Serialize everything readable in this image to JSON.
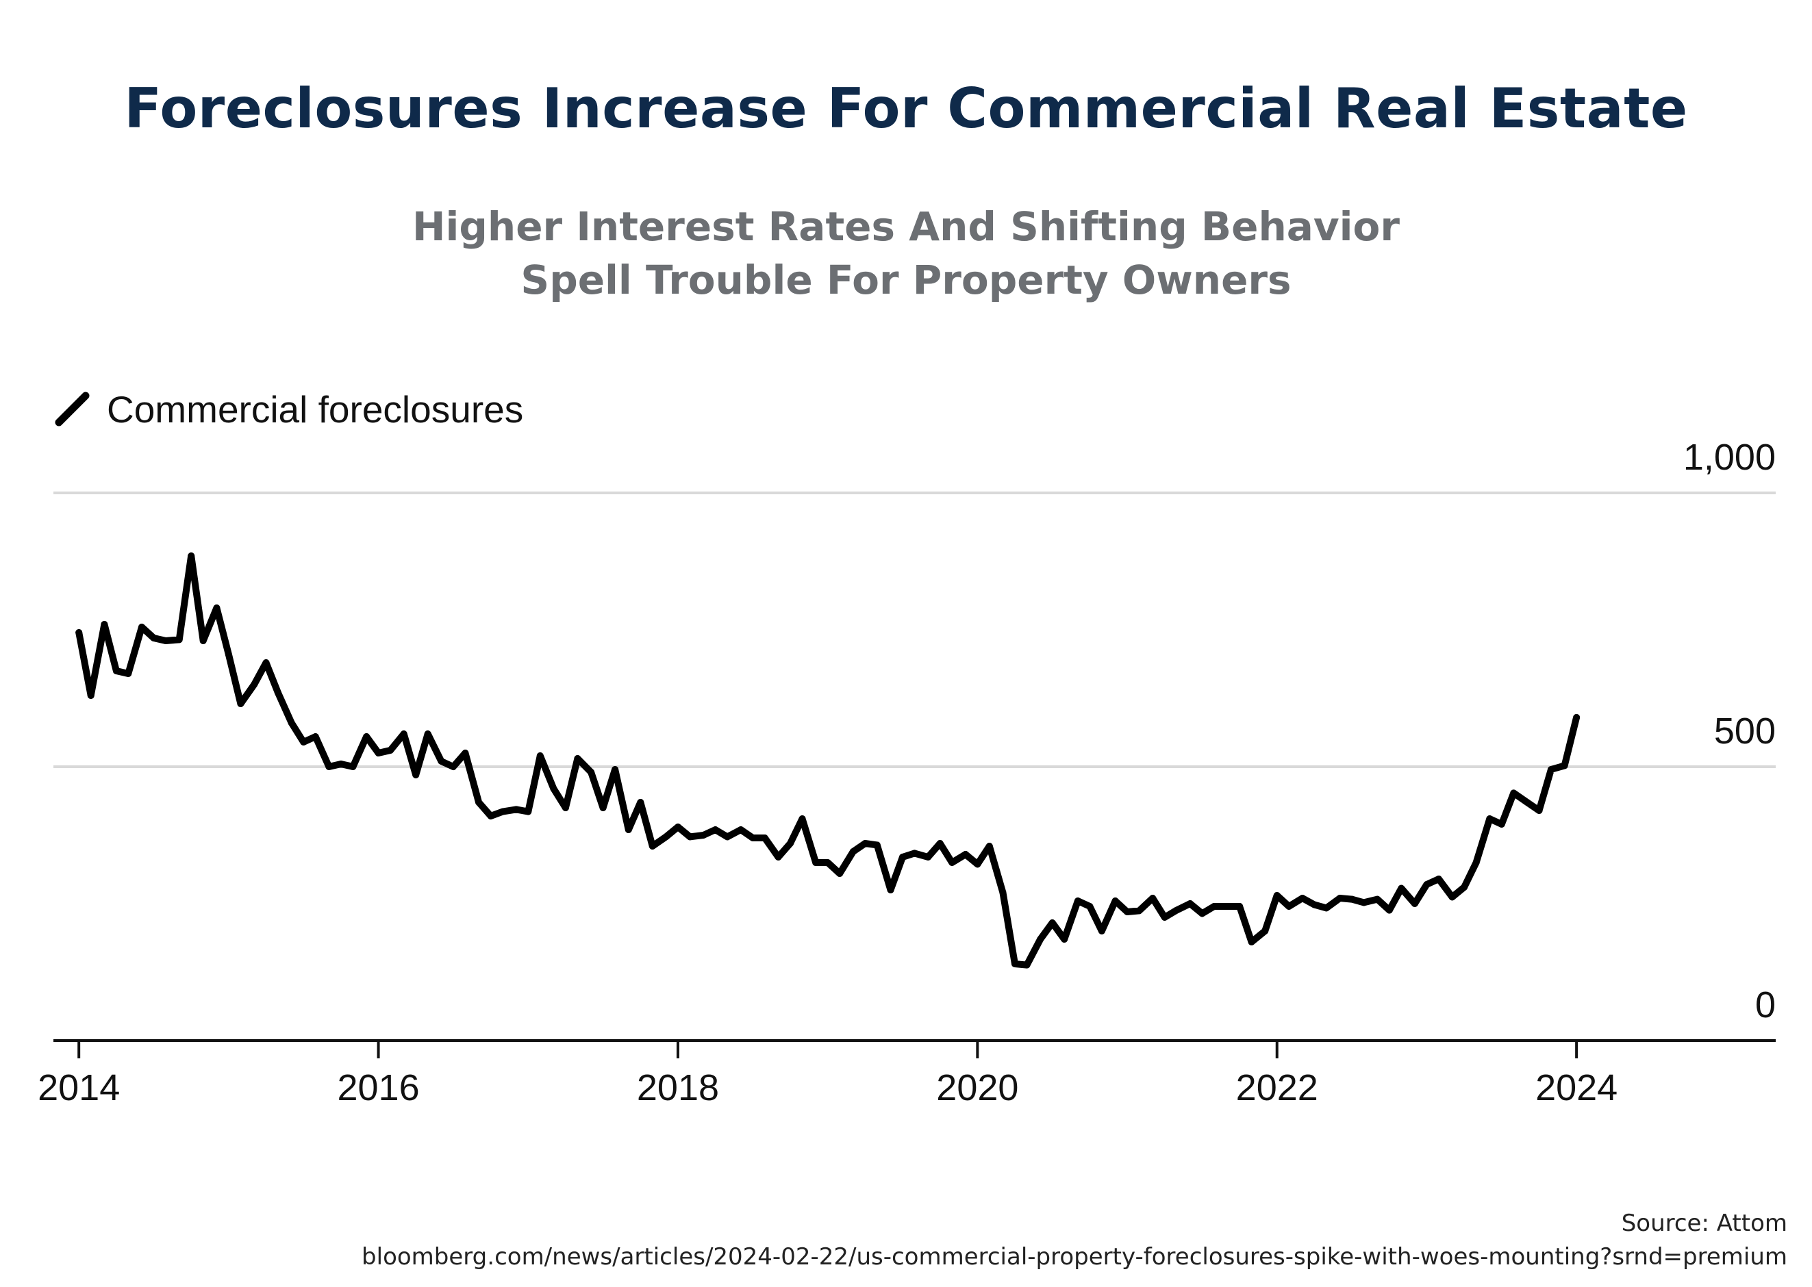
{
  "title": "Foreclosures Increase For Commercial Real Estate",
  "subtitle": [
    "Higher Interest Rates And Shifting Behavior",
    "Spell Trouble For Property Owners"
  ],
  "source": {
    "attribution": "Source: Attom",
    "url": "bloomberg.com/news/articles/2024-02-22/us-commercial-property-foreclosures-spike-with-woes-mounting?srnd=premium"
  },
  "colors": {
    "title": "#0f2a4a",
    "subtitle": "#6c6f73",
    "line": "#000000",
    "grid": "#d9d9d9",
    "axis": "#111111"
  },
  "chart_data": {
    "type": "line",
    "legend": {
      "label": "Commercial foreclosures",
      "placement": "top-left"
    },
    "xlim": [
      2013.83,
      2025.33
    ],
    "ylim": [
      0,
      1000
    ],
    "x_ticks": [
      2014,
      2016,
      2018,
      2020,
      2022,
      2024
    ],
    "x_tick_labels": [
      "2014",
      "2016",
      "2018",
      "2020",
      "2022",
      "2024"
    ],
    "y_ticks": [
      0,
      500,
      1000
    ],
    "y_tick_labels": [
      "0",
      "500",
      "1,000"
    ],
    "grid": {
      "horizontal": true,
      "vertical": false
    },
    "series": [
      {
        "name": "Commercial foreclosures",
        "x": [
          2014.0,
          2014.08,
          2014.17,
          2014.25,
          2014.33,
          2014.42,
          2014.5,
          2014.58,
          2014.67,
          2014.75,
          2014.83,
          2014.92,
          2015.0,
          2015.08,
          2015.17,
          2015.25,
          2015.33,
          2015.42,
          2015.5,
          2015.58,
          2015.67,
          2015.75,
          2015.83,
          2015.92,
          2016.0,
          2016.08,
          2016.17,
          2016.25,
          2016.33,
          2016.42,
          2016.5,
          2016.58,
          2016.67,
          2016.75,
          2016.83,
          2016.92,
          2017.0,
          2017.08,
          2017.17,
          2017.25,
          2017.33,
          2017.42,
          2017.5,
          2017.58,
          2017.67,
          2017.75,
          2017.83,
          2017.92,
          2018.0,
          2018.08,
          2018.17,
          2018.25,
          2018.33,
          2018.42,
          2018.5,
          2018.58,
          2018.67,
          2018.75,
          2018.83,
          2018.92,
          2019.0,
          2019.08,
          2019.17,
          2019.25,
          2019.33,
          2019.42,
          2019.5,
          2019.58,
          2019.67,
          2019.75,
          2019.83,
          2019.92,
          2020.0,
          2020.08,
          2020.17,
          2020.25,
          2020.33,
          2020.42,
          2020.5,
          2020.58,
          2020.67,
          2020.75,
          2020.83,
          2020.92,
          2021.0,
          2021.08,
          2021.17,
          2021.25,
          2021.33,
          2021.42,
          2021.5,
          2021.58,
          2021.67,
          2021.75,
          2021.83,
          2021.92,
          2022.0,
          2022.08,
          2022.17,
          2022.25,
          2022.33,
          2022.42,
          2022.5,
          2022.58,
          2022.67,
          2022.75,
          2022.83,
          2022.92,
          2023.0,
          2023.08,
          2023.17,
          2023.25,
          2023.33,
          2023.42,
          2023.5,
          2023.58,
          2023.67,
          2023.75,
          2023.83,
          2023.92,
          2024.0
        ],
        "y": [
          745,
          630,
          760,
          675,
          670,
          755,
          735,
          730,
          732,
          885,
          730,
          790,
          705,
          615,
          650,
          690,
          635,
          580,
          545,
          555,
          500,
          505,
          500,
          555,
          525,
          530,
          560,
          485,
          560,
          510,
          500,
          525,
          435,
          410,
          418,
          422,
          418,
          520,
          460,
          425,
          515,
          490,
          425,
          495,
          385,
          435,
          355,
          372,
          390,
          372,
          375,
          385,
          372,
          385,
          370,
          370,
          335,
          360,
          405,
          325,
          325,
          305,
          345,
          360,
          357,
          275,
          335,
          342,
          335,
          360,
          325,
          340,
          322,
          355,
          270,
          140,
          138,
          185,
          215,
          185,
          255,
          245,
          200,
          255,
          235,
          237,
          260,
          225,
          238,
          250,
          232,
          245,
          245,
          245,
          180,
          200,
          265,
          245,
          260,
          248,
          242,
          260,
          258,
          252,
          258,
          238,
          278,
          250,
          285,
          295,
          262,
          280,
          325,
          405,
          395,
          452,
          435,
          420,
          495,
          502,
          590
        ]
      }
    ]
  }
}
